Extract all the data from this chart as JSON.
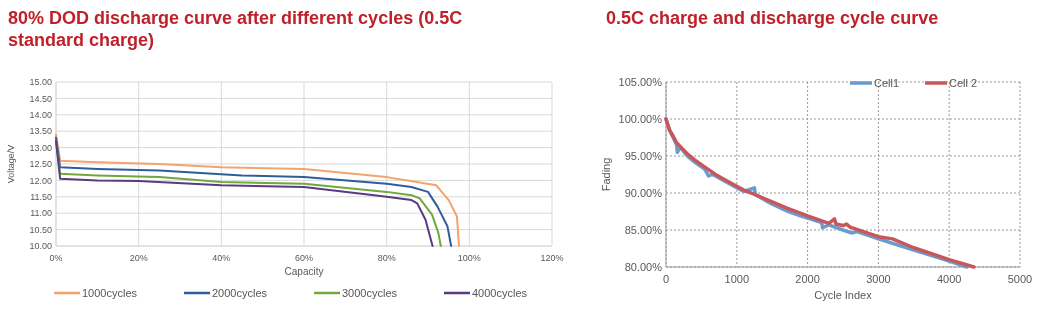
{
  "chart_data": [
    {
      "type": "line",
      "title": "80% DOD discharge curve after different cycles (0.5C standard charge)",
      "xlabel": "Capacity",
      "ylabel": "Voltage/V",
      "xlim": [
        0,
        120
      ],
      "ylim": [
        10,
        15
      ],
      "xticks": [
        {
          "value": 0,
          "label": "0%"
        },
        {
          "value": 20,
          "label": "20%"
        },
        {
          "value": 40,
          "label": "40%"
        },
        {
          "value": 60,
          "label": "60%"
        },
        {
          "value": 80,
          "label": "80%"
        },
        {
          "value": 100,
          "label": "100%"
        },
        {
          "value": 120,
          "label": "120%"
        }
      ],
      "yticks": [
        {
          "value": 10,
          "label": "10.00"
        },
        {
          "value": 10.5,
          "label": "10.50"
        },
        {
          "value": 11,
          "label": "11.00"
        },
        {
          "value": 11.5,
          "label": "11.50"
        },
        {
          "value": 12,
          "label": "12.00"
        },
        {
          "value": 12.5,
          "label": "12.50"
        },
        {
          "value": 13,
          "label": "13.00"
        },
        {
          "value": 13.5,
          "label": "13.50"
        },
        {
          "value": 14,
          "label": "14.00"
        },
        {
          "value": 14.5,
          "label": "14.50"
        },
        {
          "value": 15,
          "label": "15.00"
        }
      ],
      "grid": true,
      "legend": "bottom",
      "line_style": "solid",
      "marker": "none",
      "series": [
        {
          "name": "1000cycles",
          "color": "#f4a36c",
          "x": [
            0,
            1,
            10,
            25,
            40,
            60,
            80,
            85,
            92,
            95,
            97,
            97.5
          ],
          "values": [
            13.4,
            12.6,
            12.55,
            12.5,
            12.4,
            12.35,
            12.1,
            12,
            11.85,
            11.4,
            10.9,
            10
          ]
        },
        {
          "name": "2000cycles",
          "color": "#2e5e9a",
          "x": [
            0,
            1,
            10,
            25,
            45,
            60,
            80,
            86,
            90,
            92.3,
            94.7,
            95.6
          ],
          "values": [
            13.3,
            12.4,
            12.35,
            12.3,
            12.15,
            12.1,
            11.9,
            11.8,
            11.65,
            11.2,
            10.6,
            10
          ]
        },
        {
          "name": "3000cycles",
          "color": "#70a83c",
          "x": [
            0,
            1,
            10,
            25,
            40,
            60,
            80,
            86,
            88,
            91,
            92.5,
            93.1
          ],
          "values": [
            13.2,
            12.2,
            12.15,
            12.1,
            11.95,
            11.9,
            11.65,
            11.55,
            11.45,
            10.95,
            10.4,
            10
          ]
        },
        {
          "name": "4000cycles",
          "color": "#5a3a80",
          "x": [
            0,
            1,
            10,
            20,
            40,
            60,
            80,
            86,
            87.4,
            89.4,
            91.1
          ],
          "values": [
            13.2,
            12.05,
            12,
            11.98,
            11.85,
            11.8,
            11.5,
            11.4,
            11.3,
            10.8,
            10
          ]
        }
      ]
    },
    {
      "type": "line",
      "title": "0.5C charge and discharge cycle curve",
      "xlabel": "Cycle Index",
      "ylabel": "Fading",
      "xlim": [
        0,
        5000
      ],
      "ylim": [
        80,
        105
      ],
      "xticks": [
        0,
        1000,
        2000,
        3000,
        4000,
        5000
      ],
      "yticks": [
        {
          "value": 80,
          "label": "80.00%"
        },
        {
          "value": 85,
          "label": "85.00%"
        },
        {
          "value": 90,
          "label": "90.00%"
        },
        {
          "value": 95,
          "label": "95.00%"
        },
        {
          "value": 100,
          "label": "100.00%"
        },
        {
          "value": 105,
          "label": "105.00%"
        }
      ],
      "grid": true,
      "legend": "top right",
      "line_style": "solid",
      "marker": "none",
      "series": [
        {
          "name": "Cell1",
          "color": "#6a9bd0",
          "x": [
            0,
            50,
            100,
            150,
            160,
            200,
            300,
            400,
            550,
            600,
            650,
            700,
            850,
            1000,
            1100,
            1250,
            1260,
            1350,
            1500,
            1700,
            1900,
            2000,
            2200,
            2210,
            2300,
            2500,
            2620,
            2700,
            3000,
            3500,
            4000,
            4250
          ],
          "values": [
            100,
            98.5,
            97.5,
            96.5,
            95.5,
            96.2,
            95,
            94.2,
            93.2,
            92.3,
            92.5,
            92.3,
            91.5,
            90.7,
            90.2,
            90.7,
            89.8,
            89.3,
            88.5,
            87.6,
            86.9,
            86.6,
            86,
            85.3,
            85.7,
            85,
            84.6,
            84.8,
            83.8,
            82.3,
            80.8,
            80
          ]
        },
        {
          "name": "Cell 2",
          "color": "#c9575a",
          "x": [
            0,
            50,
            100,
            150,
            200,
            300,
            400,
            550,
            700,
            850,
            1000,
            1100,
            1250,
            1500,
            1700,
            2000,
            2300,
            2380,
            2400,
            2500,
            2550,
            2600,
            3000,
            3200,
            3500,
            4000,
            4350
          ],
          "values": [
            100,
            98.5,
            97.7,
            96.8,
            96.3,
            95.3,
            94.5,
            93.5,
            92.5,
            91.7,
            90.9,
            90.4,
            89.8,
            88.8,
            88,
            86.9,
            85.9,
            86.5,
            85.8,
            85.6,
            85.8,
            85.4,
            84.1,
            83.8,
            82.6,
            81,
            80
          ]
        }
      ]
    }
  ]
}
